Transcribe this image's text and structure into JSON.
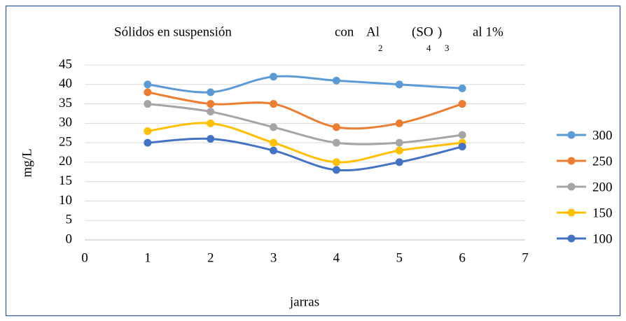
{
  "chart_data": {
    "type": "line",
    "title": [
      "Sólidos en suspensión",
      "con",
      "Al",
      "2",
      "(SO",
      "4",
      ")",
      "3",
      "al 1%"
    ],
    "x_label": "jarras",
    "y_label": "mg/L",
    "x": [
      1,
      2,
      3,
      4,
      5,
      6
    ],
    "series": [
      {
        "name": "300",
        "color": "#5b9bd5",
        "values": [
          40,
          38,
          42,
          41,
          40,
          39
        ]
      },
      {
        "name": "250",
        "color": "#ed7d31",
        "values": [
          38,
          35,
          35,
          29,
          30,
          35
        ]
      },
      {
        "name": "200",
        "color": "#a5a5a5",
        "values": [
          35,
          33,
          29,
          25,
          25,
          27
        ]
      },
      {
        "name": "150",
        "color": "#ffc000",
        "values": [
          28,
          30,
          25,
          20,
          23,
          25
        ]
      },
      {
        "name": "100",
        "color": "#4472c4",
        "values": [
          25,
          26,
          23,
          18,
          20,
          24
        ]
      }
    ],
    "xlim": [
      0,
      7
    ],
    "xticks": [
      0,
      1,
      2,
      3,
      4,
      5,
      6,
      7
    ],
    "ylim": [
      0,
      45
    ],
    "yticks": [
      0,
      5,
      10,
      15,
      20,
      25,
      30,
      35,
      40,
      45
    ],
    "grid": true,
    "smooth": true,
    "legend": "right"
  }
}
